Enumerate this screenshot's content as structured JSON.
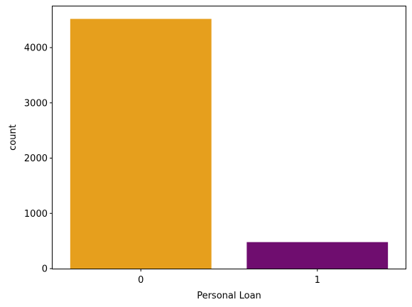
{
  "chart_data": {
    "type": "bar",
    "categories": [
      "0",
      "1"
    ],
    "values": [
      4520,
      480
    ],
    "colors": [
      "#e69f1d",
      "#6f0d6f"
    ],
    "title": "",
    "xlabel": "Personal Loan",
    "ylabel": "count",
    "ylim": [
      0,
      4746
    ],
    "yticks": [
      0,
      1000,
      2000,
      3000,
      4000
    ],
    "grid": false,
    "legend": "none"
  }
}
